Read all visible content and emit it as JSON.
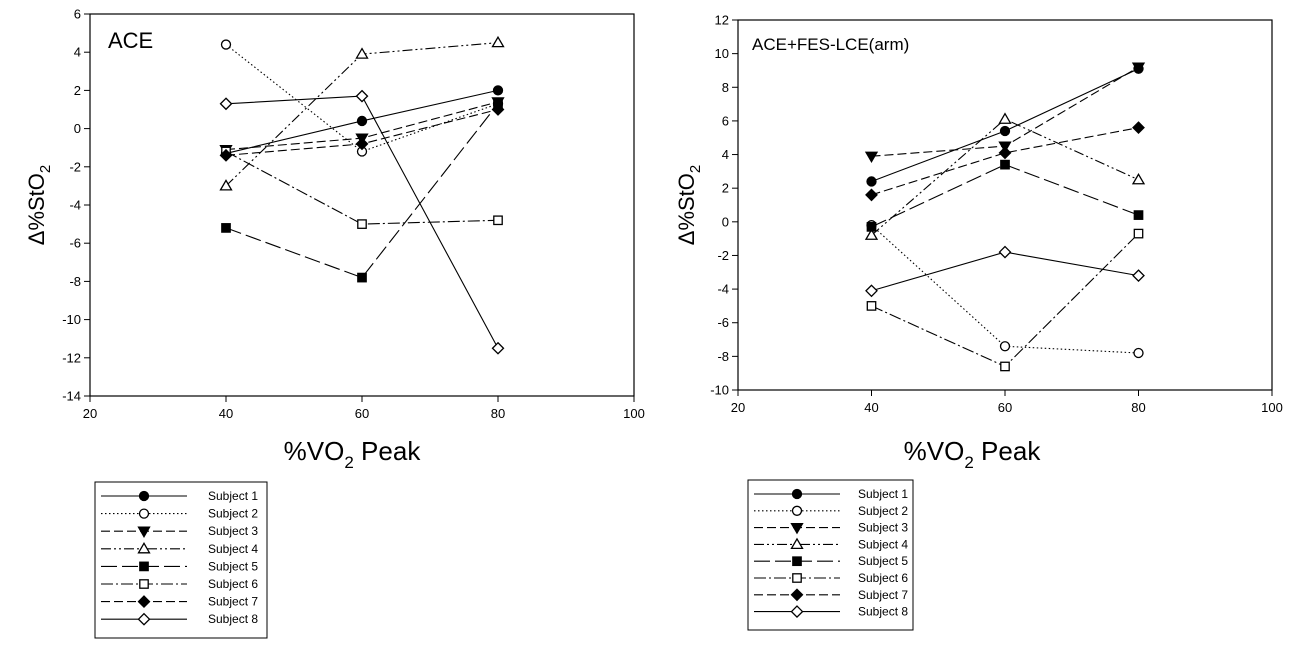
{
  "charts": [
    {
      "type": "line",
      "title": "ACE",
      "xlabel": "%VO",
      "xlabel_sub": "2",
      "xlabel_tail": " Peak",
      "ylabel": "Δ%StO",
      "ylabel_sub": "2",
      "xlim": [
        20,
        100
      ],
      "xticks": [
        20,
        40,
        60,
        80,
        100
      ],
      "ylim": [
        -14,
        6
      ],
      "yticks": [
        -14,
        -12,
        -10,
        -8,
        -6,
        -4,
        -2,
        0,
        2,
        4,
        6
      ],
      "x": [
        40,
        60,
        80
      ],
      "series": [
        {
          "name": "Subject 1",
          "values": [
            -1.3,
            0.4,
            2.0
          ],
          "marker": "circle",
          "filled": true,
          "dash": "solid"
        },
        {
          "name": "Subject 2",
          "values": [
            4.4,
            -1.2,
            1.3
          ],
          "marker": "circle",
          "filled": false,
          "dash": "dotted"
        },
        {
          "name": "Subject 3",
          "values": [
            -1.1,
            -0.5,
            1.4
          ],
          "marker": "triangle-down",
          "filled": true,
          "dash": "dash"
        },
        {
          "name": "Subject 4",
          "values": [
            -3.0,
            3.9,
            4.5
          ],
          "marker": "triangle-up",
          "filled": false,
          "dash": "dashdotdot"
        },
        {
          "name": "Subject 5",
          "values": [
            -5.2,
            -7.8,
            1.3
          ],
          "marker": "square",
          "filled": true,
          "dash": "longdash"
        },
        {
          "name": "Subject 6",
          "values": [
            -1.2,
            -5.0,
            -4.8
          ],
          "marker": "square",
          "filled": false,
          "dash": "dashdot"
        },
        {
          "name": "Subject 7",
          "values": [
            -1.4,
            -0.8,
            1.0
          ],
          "marker": "diamond",
          "filled": true,
          "dash": "dash"
        },
        {
          "name": "Subject 8",
          "values": [
            1.3,
            1.7,
            -11.5
          ],
          "marker": "diamond",
          "filled": false,
          "dash": "solid"
        }
      ]
    },
    {
      "type": "line",
      "title": "ACE+FES-LCE(arm)",
      "xlabel": "%VO",
      "xlabel_sub": "2",
      "xlabel_tail": " Peak",
      "ylabel": "Δ%StO",
      "ylabel_sub": "2",
      "xlim": [
        20,
        100
      ],
      "xticks": [
        20,
        40,
        60,
        80,
        100
      ],
      "ylim": [
        -10,
        12
      ],
      "yticks": [
        -10,
        -8,
        -6,
        -4,
        -2,
        0,
        2,
        4,
        6,
        8,
        10,
        12
      ],
      "x": [
        40,
        60,
        80
      ],
      "series": [
        {
          "name": "Subject 1",
          "values": [
            2.4,
            5.4,
            9.1
          ],
          "marker": "circle",
          "filled": true,
          "dash": "solid"
        },
        {
          "name": "Subject 2",
          "values": [
            -0.2,
            -7.4,
            -7.8
          ],
          "marker": "circle",
          "filled": false,
          "dash": "dotted"
        },
        {
          "name": "Subject 3",
          "values": [
            3.9,
            4.5,
            9.2
          ],
          "marker": "triangle-down",
          "filled": true,
          "dash": "dash"
        },
        {
          "name": "Subject 4",
          "values": [
            -0.8,
            6.1,
            2.5
          ],
          "marker": "triangle-up",
          "filled": false,
          "dash": "dashdotdot"
        },
        {
          "name": "Subject 5",
          "values": [
            -0.3,
            3.4,
            0.4
          ],
          "marker": "square",
          "filled": true,
          "dash": "longdash"
        },
        {
          "name": "Subject 6",
          "values": [
            -5.0,
            -8.6,
            -0.7
          ],
          "marker": "square",
          "filled": false,
          "dash": "dashdot"
        },
        {
          "name": "Subject 7",
          "values": [
            1.6,
            4.1,
            5.6
          ],
          "marker": "diamond",
          "filled": true,
          "dash": "dash"
        },
        {
          "name": "Subject 8",
          "values": [
            -4.1,
            -1.8,
            -3.2
          ],
          "marker": "diamond",
          "filled": false,
          "dash": "solid"
        }
      ]
    }
  ]
}
